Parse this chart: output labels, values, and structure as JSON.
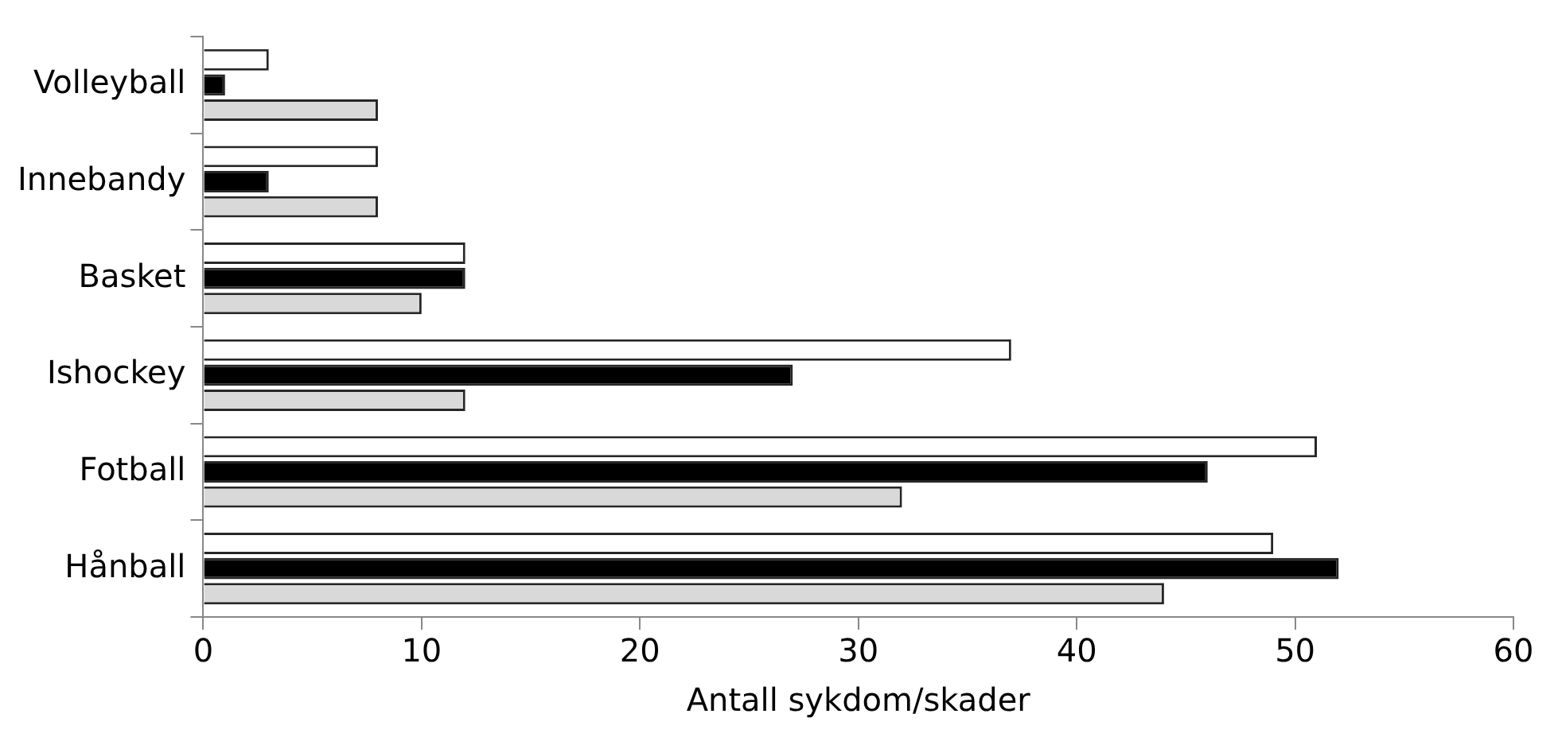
{
  "chart_data": {
    "type": "bar",
    "orientation": "horizontal",
    "xlabel": "Antall sykdom/skader",
    "categories": [
      "Volleyball",
      "Innebandy",
      "Basket",
      "Ishockey",
      "Fotball",
      "Hånball"
    ],
    "series": [
      {
        "color": "#ffffff",
        "values": [
          3,
          8,
          12,
          37,
          51,
          49
        ]
      },
      {
        "color": "#000000",
        "values": [
          1,
          3,
          12,
          27,
          46,
          52
        ]
      },
      {
        "color": "#d9d9d9",
        "values": [
          8,
          8,
          10,
          12,
          32,
          44
        ]
      }
    ],
    "xlim": [
      0,
      60
    ],
    "xticks": [
      0,
      10,
      20,
      30,
      40,
      50,
      60
    ],
    "grid": false,
    "legend": false
  }
}
